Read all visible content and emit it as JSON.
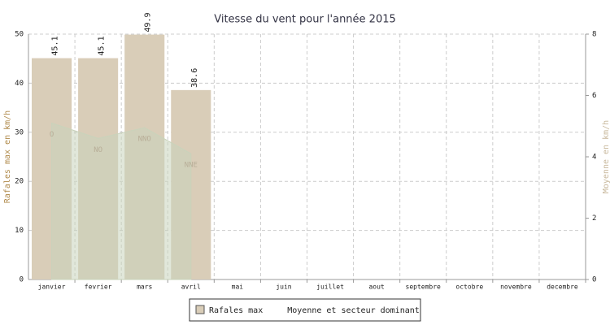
{
  "chart_data": {
    "type": "bar",
    "title": "Vitesse du vent pour l'année 2015",
    "categories": [
      "janvier",
      "fevrier",
      "mars",
      "avril",
      "mai",
      "juin",
      "juillet",
      "aout",
      "septembre",
      "octobre",
      "novembre",
      "decembre"
    ],
    "series": [
      {
        "name": "Rafales max",
        "type": "bar",
        "color": "#d9cdb8",
        "values": [
          45.1,
          45.1,
          49.9,
          38.6,
          null,
          null,
          null,
          null,
          null,
          null,
          null,
          null
        ]
      },
      {
        "name": "Moyenne et secteur dominant",
        "type": "area",
        "axis": "y2",
        "color": "#c9d3bb",
        "values": [
          5.1,
          4.6,
          4.95,
          4.1,
          null,
          null,
          null,
          null,
          null,
          null,
          null,
          null
        ],
        "sectors": [
          "O",
          "NO",
          "NNO",
          "NNE",
          null,
          null,
          null,
          null,
          null,
          null,
          null,
          null
        ]
      }
    ],
    "ylabel": "Rafales max en km/h",
    "y2label": "Moyenne en km/h",
    "ylim": [
      0,
      50
    ],
    "yticks": [
      0,
      10,
      20,
      30,
      40,
      50
    ],
    "y2lim": [
      0,
      8
    ],
    "y2ticks": [
      0,
      2,
      4,
      6,
      8
    ],
    "grid": true
  }
}
